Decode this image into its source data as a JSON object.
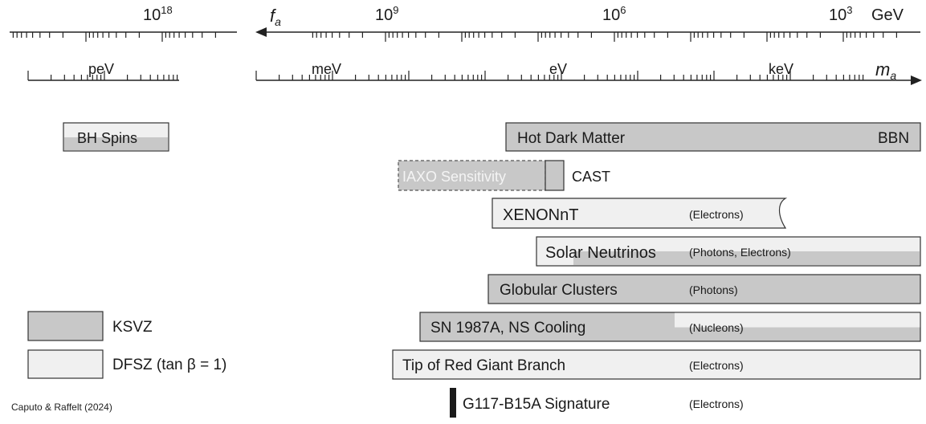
{
  "axes": {
    "fa": {
      "symbol": "f",
      "symbol_sub": "a",
      "unit": "GeV",
      "ticks": [
        {
          "base": "10",
          "exp": "18"
        },
        {
          "base": "10",
          "exp": "9"
        },
        {
          "base": "10",
          "exp": "6"
        },
        {
          "base": "10",
          "exp": "3"
        }
      ]
    },
    "ma": {
      "symbol": "m",
      "symbol_sub": "a",
      "ticks": [
        "peV",
        "meV",
        "eV",
        "keV"
      ]
    }
  },
  "bars": [
    {
      "label": "BH Spins",
      "note": "",
      "style": "split"
    },
    {
      "label": "Hot Dark Matter",
      "label_right": "BBN",
      "note": "",
      "style": "ksvz"
    },
    {
      "label": "IAXO Sensitivity",
      "note": "",
      "style": "dashed"
    },
    {
      "label": "CAST",
      "note": "",
      "style": "ksvz-small"
    },
    {
      "label": "XENONnT",
      "note": "(Electrons)",
      "style": "dfsz"
    },
    {
      "label": "Solar Neutrinos",
      "note": "(Photons, Electrons)",
      "style": "split"
    },
    {
      "label": "Globular Clusters",
      "note": "(Photons)",
      "style": "ksvz"
    },
    {
      "label": "SN 1987A, NS Cooling",
      "note": "(Nucleons)",
      "style": "ksvz-partial"
    },
    {
      "label": "Tip of Red Giant Branch",
      "note": "(Electrons)",
      "style": "dfsz"
    },
    {
      "label": "G117-B15A Signature",
      "note": "(Electrons)",
      "style": "marker"
    }
  ],
  "legend": [
    {
      "label": "KSVZ",
      "color": "#c8c8c8"
    },
    {
      "label": "DFSZ (tan β = 1)",
      "color": "#f0f0f0"
    }
  ],
  "colors": {
    "ksvz": "#c8c8c8",
    "dfsz": "#f0f0f0",
    "stroke": "#333333"
  },
  "credit": "Caputo & Raffelt (2024)"
}
